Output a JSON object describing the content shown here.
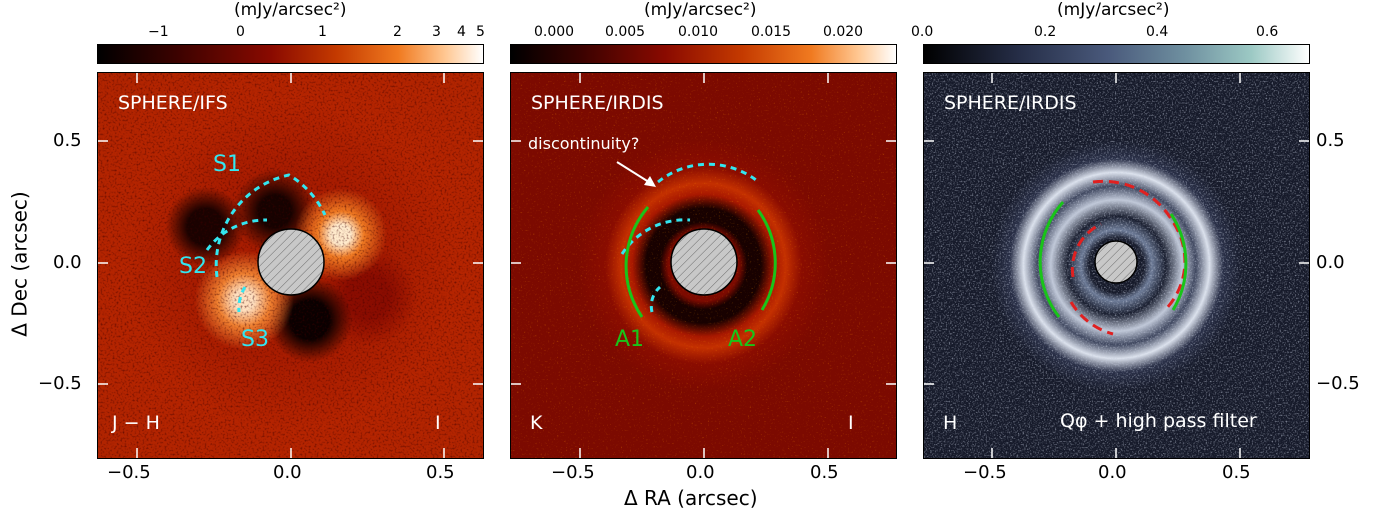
{
  "colorbars": [
    {
      "unit": "(mJy/arcsec²)",
      "ticks": [
        "−1",
        "0",
        "1",
        "2",
        "3",
        "4",
        "5"
      ]
    },
    {
      "unit": "(mJy/arcsec²)",
      "ticks": [
        "0.000",
        "0.005",
        "0.010",
        "0.015",
        "0.020"
      ]
    },
    {
      "unit": "(mJy/arcsec²)",
      "ticks": [
        "0.0",
        "0.2",
        "0.4",
        "0.6"
      ]
    }
  ],
  "panels": [
    {
      "title": "SPHERE/IFS",
      "corner_left": "J − H",
      "corner_right": "I",
      "labels": [
        "S1",
        "S2",
        "S3"
      ]
    },
    {
      "title": "SPHERE/IRDIS",
      "corner_left": "K",
      "corner_right": "I",
      "labels": [
        "A1",
        "A2"
      ],
      "annotation": "discontinuity?"
    },
    {
      "title": "SPHERE/IRDIS",
      "corner_left": "H",
      "corner_right": "Qφ + high pass filter"
    }
  ],
  "axes": {
    "xlabel": "Δ RA (arcsec)",
    "ylabel": "Δ Dec (arcsec)",
    "x_ticks": [
      "−0.5",
      "0.0",
      "0.5"
    ],
    "y_ticks": [
      "0.5",
      "0.0",
      "−0.5"
    ]
  },
  "colors": {
    "cyan": "#33e6f0",
    "green": "#19c419",
    "red": "#e02020",
    "mask": "#c8c8c8"
  }
}
